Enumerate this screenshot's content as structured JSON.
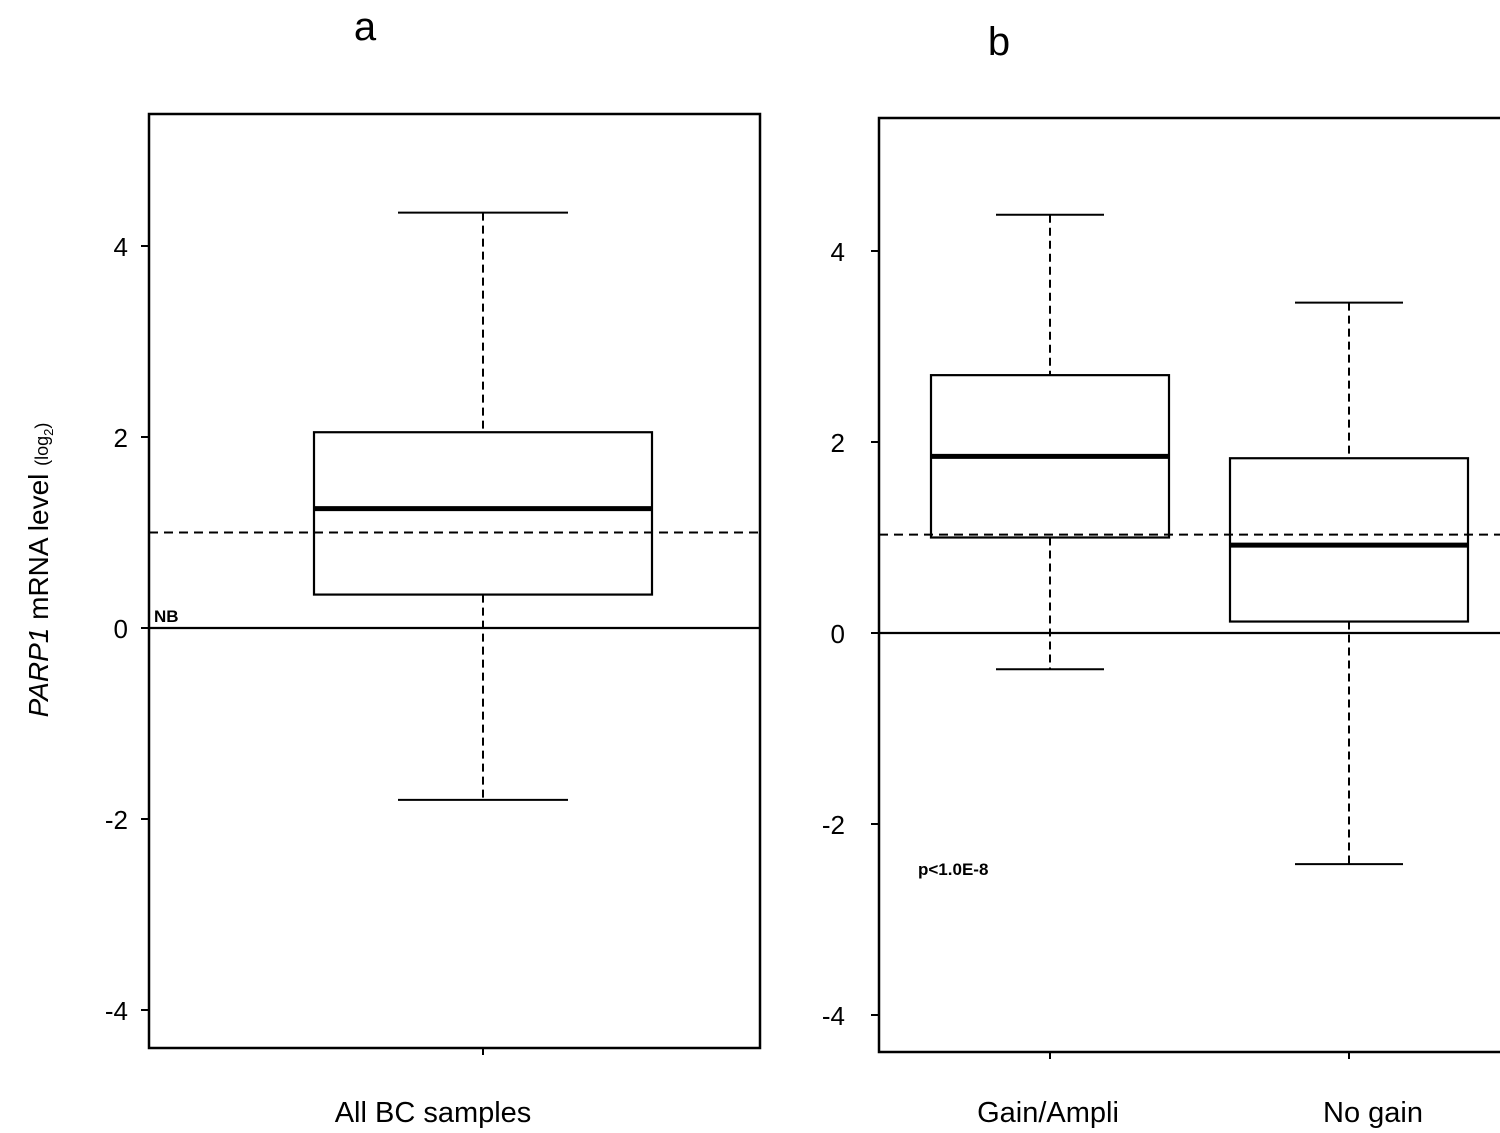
{
  "ylabel": {
    "gene": "PARP1",
    "text": " mRNA level ",
    "unit_prefix": "(log",
    "unit_sub": "2",
    "unit_suffix": ")"
  },
  "chart_data": [
    {
      "type": "box",
      "panel": "a",
      "ylim": [
        -4.4,
        5.4
      ],
      "yticks": [
        -4,
        -2,
        0,
        2,
        4
      ],
      "reference_lines": {
        "solid": 0,
        "dashed": 1.0
      },
      "annotation": "NB",
      "boxes": [
        {
          "category": "All BC samples",
          "min": -1.8,
          "q1": 0.35,
          "median": 1.25,
          "q3": 2.05,
          "max": 4.35
        }
      ]
    },
    {
      "type": "box",
      "panel": "b",
      "ylim": [
        -4.4,
        5.4
      ],
      "yticks": [
        -4,
        -2,
        0,
        2,
        4
      ],
      "reference_lines": {
        "solid": 0,
        "dashed": 1.03
      },
      "annotation": "p<1.0E-8",
      "boxes": [
        {
          "category": "Gain/Ampli",
          "min": -0.38,
          "q1": 1.0,
          "median": 1.85,
          "q3": 2.7,
          "max": 4.38
        },
        {
          "category": "No gain",
          "min": -2.42,
          "q1": 0.12,
          "median": 0.92,
          "q3": 1.83,
          "max": 3.46
        }
      ]
    }
  ]
}
